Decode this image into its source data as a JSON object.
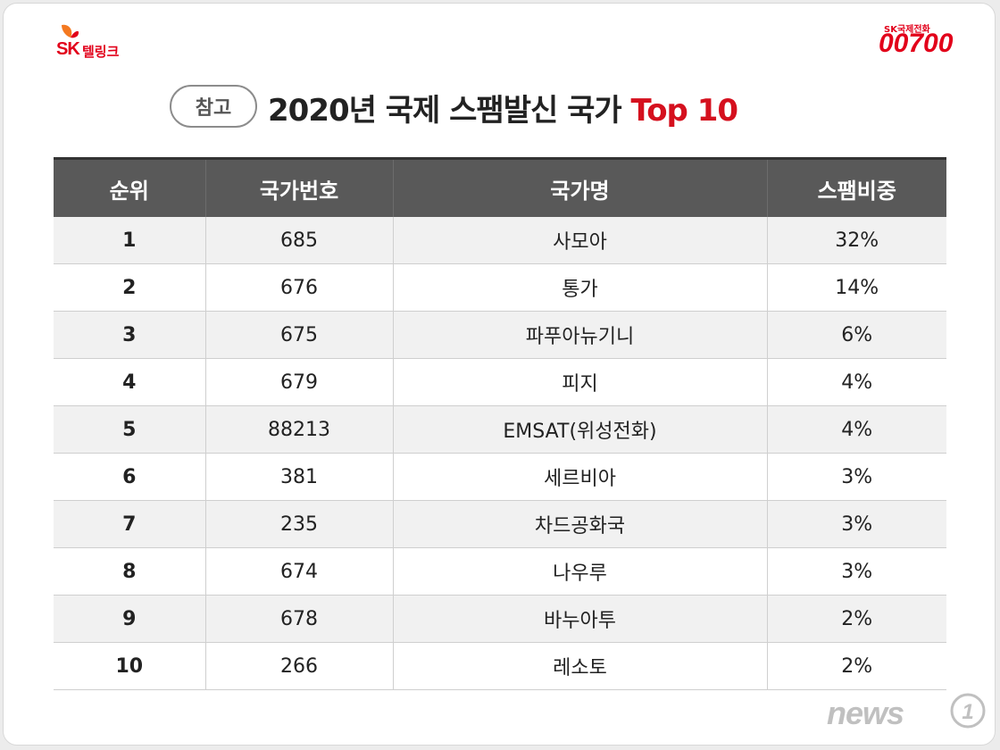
{
  "brand_left": {
    "name": "SK",
    "sub": "텔링크"
  },
  "brand_right": {
    "small": "SK국제전화",
    "big": "00700"
  },
  "title": {
    "badge": "참고",
    "main": "2020년 국제 스팸발신 국가",
    "accent": "Top 10"
  },
  "table": {
    "headers": [
      "순위",
      "국가번호",
      "국가명",
      "스팸비중"
    ],
    "rows": [
      [
        "1",
        "685",
        "사모아",
        "32%"
      ],
      [
        "2",
        "676",
        "통가",
        "14%"
      ],
      [
        "3",
        "675",
        "파푸아뉴기니",
        "6%"
      ],
      [
        "4",
        "679",
        "피지",
        "4%"
      ],
      [
        "5",
        "88213",
        "EMSAT(위성전화)",
        "4%"
      ],
      [
        "6",
        "381",
        "세르비아",
        "3%"
      ],
      [
        "7",
        "235",
        "차드공화국",
        "3%"
      ],
      [
        "8",
        "674",
        "나우루",
        "3%"
      ],
      [
        "9",
        "678",
        "바누아투",
        "2%"
      ],
      [
        "10",
        "266",
        "레소토",
        "2%"
      ]
    ]
  },
  "watermark": {
    "text": "news",
    "mark": "1"
  },
  "colors": {
    "accent": "#d5101e",
    "header_bg": "#595959",
    "row_alt": "#f1f1f1"
  }
}
